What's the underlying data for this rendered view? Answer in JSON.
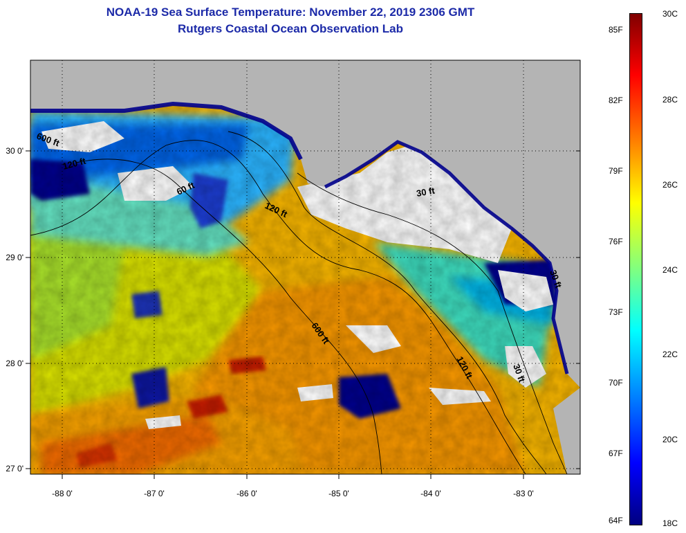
{
  "title": {
    "line1": "NOAA-19 Sea Surface Temperature:  November 22, 2019 2306 GMT",
    "line2": "Rutgers Coastal Ocean Observation Lab"
  },
  "map": {
    "longitude_ticks": [
      "-88 0'",
      "-87 0'",
      "-86 0'",
      "-85 0'",
      "-84 0'",
      "-83 0'"
    ],
    "latitude_ticks": [
      "30 0'",
      "29 0'",
      "28 0'",
      "27 0'"
    ],
    "contour_labels": [
      "60 ft",
      "600 ft",
      "120 ft",
      "120 ft",
      "30 ft",
      "600 ft",
      "120 ft",
      "30 ft",
      "30 ft"
    ],
    "colors": {
      "land": "#b4b4b4",
      "cloud": "#ffffff",
      "cold": "#00008c",
      "warm": "#f5a000",
      "hot": "#e04000"
    }
  },
  "colorbar": {
    "fahrenheit_labels": [
      "85F",
      "82F",
      "79F",
      "76F",
      "73F",
      "70F",
      "67F",
      "64F"
    ],
    "celsius_labels": [
      "30C",
      "28C",
      "26C",
      "24C",
      "22C",
      "20C",
      "18C"
    ],
    "range_c": [
      18,
      30
    ],
    "range_f": [
      64,
      86
    ],
    "colormap": "jet"
  }
}
